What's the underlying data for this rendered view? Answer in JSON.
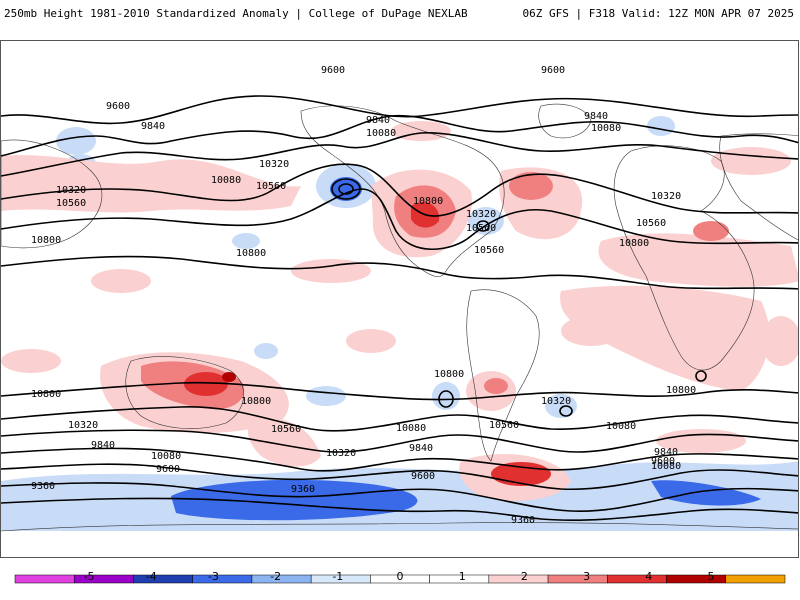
{
  "header": {
    "title": "250mb Height 1981-2010 Standardized Anomaly | College of DuPage NEXLAB",
    "run_info": "06Z GFS | F318 Valid: 12Z MON APR 07 2025"
  },
  "contour_labels": [
    "9600",
    "9600",
    "9600",
    "9840",
    "9840",
    "10080",
    "10080",
    "10320",
    "10320",
    "10560",
    "10560",
    "10800",
    "10800",
    "9840",
    "10080",
    "10320",
    "10560",
    "10800",
    "10800",
    "10320",
    "10560",
    "10800",
    "10800",
    "10560",
    "10320",
    "9840",
    "10080",
    "9600",
    "9360",
    "9360",
    "9360",
    "9600",
    "9840",
    "10080",
    "10560",
    "10800",
    "10320",
    "10080",
    "9840",
    "9600",
    "10800",
    "10320",
    "10560",
    "10080"
  ],
  "colorbar": {
    "ticks": [
      "-5",
      "-4",
      "-3",
      "-2",
      "-1",
      "0",
      "1",
      "2",
      "3",
      "4",
      "5"
    ],
    "colors": [
      "#e040e0",
      "#9b00c8",
      "#1f3fb0",
      "#3a6ae8",
      "#8cb4f0",
      "#d8e8fb",
      "#ffffff",
      "#ffffff",
      "#fbd0d0",
      "#f08080",
      "#e03030",
      "#b00000",
      "#f0a000"
    ]
  },
  "anomaly_colors": {
    "pos1": "#fbd0d0",
    "pos2": "#f08080",
    "pos3": "#e03030",
    "pos4": "#b00000",
    "neg1": "#c8dcf8",
    "neg2": "#6a9cf0",
    "neg3": "#2d5ae0"
  }
}
